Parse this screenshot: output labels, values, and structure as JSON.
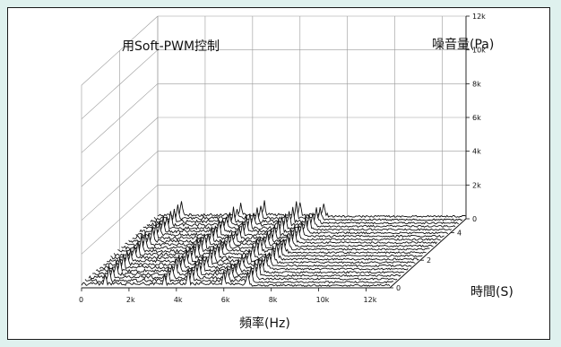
{
  "chart_data": {
    "type": "waterfall-3d",
    "title": "用Soft-PWM控制",
    "zlabel": "噪音量(Pa)",
    "xlabel": "頻率(Hz)",
    "ylabel": "時間(S)",
    "x_ticks": [
      "0",
      "2k",
      "4k",
      "6k",
      "8k",
      "10k",
      "12k"
    ],
    "y_ticks": [
      "0",
      "2",
      "4"
    ],
    "z_ticks": [
      "0",
      "2k",
      "4k",
      "6k",
      "8k",
      "10k",
      "12k"
    ],
    "xlim": [
      0,
      13000
    ],
    "ylim": [
      0,
      5
    ],
    "zlim": [
      0,
      12000
    ],
    "n_slices": 22,
    "peaks_hz": [
      1000,
      3500,
      4500,
      6000,
      7000
    ],
    "grid": true,
    "colors": {
      "frame_bg": "#dff1ee",
      "line": "#111111",
      "grid": "#9a9a9a"
    }
  }
}
